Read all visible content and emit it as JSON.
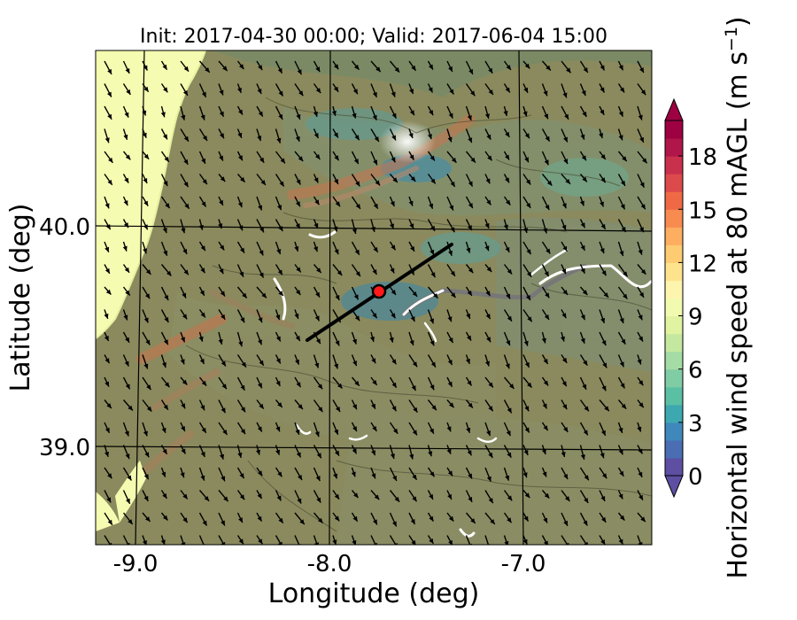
{
  "title": "Init: 2017-04-30 00:00; Valid: 2017-06-04 15:00",
  "map": {
    "xlabel": "Longitude (deg)",
    "ylabel": "Latitude (deg)",
    "xlim": [
      -9.25,
      -6.35
    ],
    "ylim": [
      38.55,
      40.8
    ],
    "xticks": [
      -9.0,
      -8.0,
      -7.0
    ],
    "xtick_labels": [
      "-9.0",
      "-8.0",
      "-7.0"
    ],
    "yticks": [
      39.0,
      40.0
    ],
    "ytick_labels": [
      "39.0",
      "40.0"
    ],
    "grid": true,
    "wind_direction": "north-westerly (arrows pointing to south-east)",
    "transect": {
      "start": [
        -8.12,
        39.48
      ],
      "end": [
        -7.37,
        39.91
      ]
    },
    "site_marker": {
      "lon": -7.75,
      "lat": 39.69,
      "color": "#ff1a1a"
    },
    "sea_color": "#f5fbb0",
    "land_color": "#8a8a5e"
  },
  "colorbar": {
    "label": "Horizontal wind speed at 80 mAGL (m s$^{-1}$)",
    "label_main": "Horizontal wind speed at 80 mAGL (m s",
    "label_sup": "−1",
    "label_end": ")",
    "min": 0,
    "max": 20,
    "tick_values": [
      0,
      3,
      6,
      9,
      12,
      15,
      18
    ],
    "tick_labels": [
      "0",
      "3",
      "6",
      "9",
      "12",
      "15",
      "18"
    ],
    "extend": "both",
    "colors": [
      "#5e4fa2",
      "#4a6db3",
      "#3f88bc",
      "#3ea8b0",
      "#5bbfa4",
      "#80cca4",
      "#a5dba4",
      "#c4e89f",
      "#e0f3a0",
      "#f2fab0",
      "#fdf5ae",
      "#fee38d",
      "#fdcb72",
      "#fdae61",
      "#f88b50",
      "#ef6a44",
      "#dc4a4c",
      "#c9304c",
      "#b0164a",
      "#9e0142"
    ]
  },
  "chart_data": {
    "type": "heatmap",
    "title": "Init: 2017-04-30 00:00; Valid: 2017-06-04 15:00",
    "xlabel": "Longitude (deg)",
    "ylabel": "Latitude (deg)",
    "xlim": [
      -9.25,
      -6.35
    ],
    "ylim": [
      38.55,
      40.8
    ],
    "value_label": "Horizontal wind speed at 80 mAGL (m s$^{-1}$)",
    "value_range": [
      0,
      20
    ],
    "features": [
      {
        "name": "transect line",
        "from": [
          -8.12,
          39.48
        ],
        "to": [
          -7.37,
          39.91
        ]
      },
      {
        "name": "site marker",
        "at": [
          -7.75,
          39.69
        ]
      }
    ]
  }
}
